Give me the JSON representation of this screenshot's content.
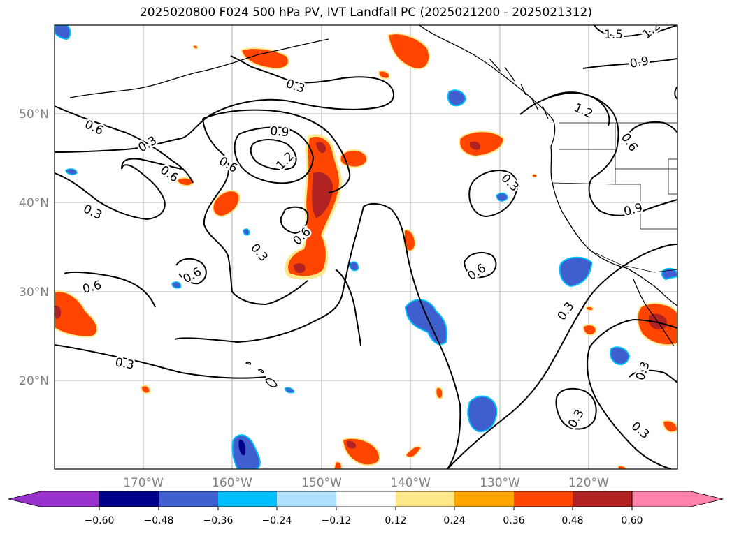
{
  "title": "2025020800 F024 500 hPa PV, IVT Landfall PC (2025021200 - 2025021312)",
  "lon_labels": [
    "170°W",
    "160°W",
    "150°W",
    "140°W",
    "130°W",
    "120°W"
  ],
  "lat_labels": [
    "50°N",
    "40°N",
    "30°N",
    "20°N"
  ],
  "colorbar": {
    "colors": [
      "#9932cc",
      "#00008b",
      "#3f5fcf",
      "#00bfff",
      "#b0e2ff",
      "#ffffff",
      "#ffe88a",
      "#ffa500",
      "#ff4500",
      "#b22222",
      "#ff82ab"
    ],
    "ticks": [
      "−0.60",
      "−0.48",
      "−0.36",
      "−0.24",
      "−0.12",
      "0.12",
      "0.24",
      "0.36",
      "0.48",
      "0.60"
    ]
  },
  "contour_labels": [
    "1.5",
    "1.2",
    "0.9",
    "0.3",
    "1.2",
    "0.6",
    "0.6",
    "0.3",
    "0.9",
    "1.2",
    "0.6",
    "0.6",
    "0.3",
    "0.3",
    "0.9",
    "0.3",
    "0.6",
    "0.6",
    "0.6",
    "0.6",
    "0.3",
    "0.3",
    "0.3",
    "0.3",
    "0.3"
  ],
  "colors": {
    "pos_light": "#ffe88a",
    "pos_mid": "#ffa500",
    "pos_strong": "#ff4500",
    "pos_max": "#b22222",
    "neg_light": "#00bfff",
    "neg_mid": "#3f5fcf",
    "neg_max": "#00008b",
    "grid": "#b0b0b0",
    "tick_text": "#808080"
  }
}
